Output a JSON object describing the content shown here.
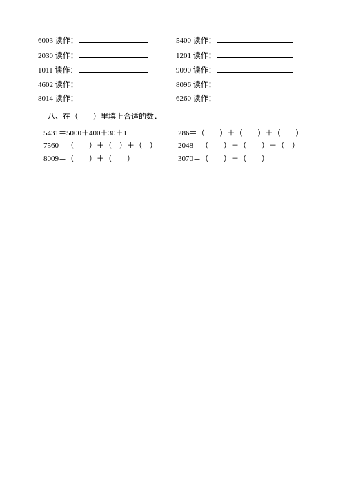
{
  "readings": {
    "suffix": " 读作：",
    "rows": [
      {
        "left_num": "6003",
        "right_num": "5400",
        "show_lines": true
      },
      {
        "left_num": "2030",
        "right_num": "1201",
        "show_lines": true
      },
      {
        "left_num": "1011",
        "right_num": "9090",
        "show_lines": true
      },
      {
        "left_num": "4602",
        "right_num": "8096",
        "show_lines": false
      },
      {
        "left_num": "8014",
        "right_num": "6260",
        "show_lines": false
      }
    ]
  },
  "section8": {
    "title": "八、在（　　）里填上合适的数．",
    "eq_rows": [
      {
        "left": "5431＝5000＋400＋30＋1",
        "right": "286＝（　　）＋（　　）＋（　　）"
      },
      {
        "left": "7560＝（　　）＋（　）＋（　）",
        "right": "2048＝（　　）＋（　　）＋（　）"
      },
      {
        "left": "8009＝（　　）＋（　　）",
        "right": "3070＝（　　）＋（　　）"
      }
    ]
  }
}
